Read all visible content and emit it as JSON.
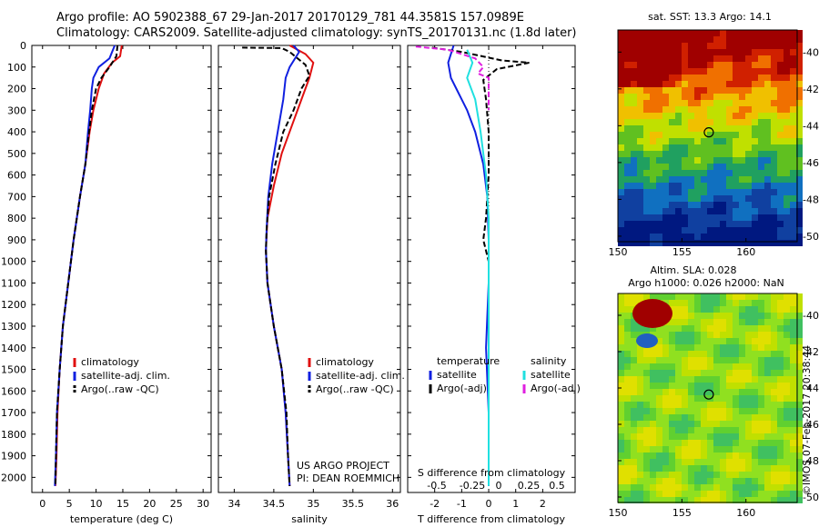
{
  "header": {
    "line1": "Argo profile: AO 5902388_67 29-Jan-2017 20170129_781 44.3581S 157.0989E",
    "line2": "Climatology: CARS2009. Satellite-adjusted climatology: synTS_20170131.nc (1.8d later)"
  },
  "colors": {
    "climatology": "#e01010",
    "satellite": "#1020e0",
    "argo": "#000000",
    "sal_satellite": "#20e0e0",
    "sal_argo": "#e020e0"
  },
  "chart_data": [
    {
      "type": "line",
      "xlabel": "temperature (deg C)",
      "xlim": [
        -2,
        31.5
      ],
      "xticks": [
        0,
        5,
        10,
        15,
        20,
        25,
        30
      ],
      "ylim": [
        0,
        2070
      ],
      "yticks": [
        0,
        100,
        200,
        300,
        400,
        500,
        600,
        700,
        800,
        900,
        1000,
        1100,
        1200,
        1300,
        1400,
        1500,
        1600,
        1700,
        1800,
        1900,
        2000
      ],
      "legend": [
        "climatology",
        "satellite-adj. clim.",
        "Argo(..raw -QC)"
      ],
      "series": [
        {
          "name": "climatology",
          "color": "#e01010",
          "points": [
            [
              14.8,
              0
            ],
            [
              14.5,
              50
            ],
            [
              13,
              80
            ],
            [
              11.5,
              130
            ],
            [
              10.5,
              200
            ],
            [
              9.5,
              300
            ],
            [
              8.8,
              400
            ],
            [
              8,
              550
            ],
            [
              7,
              700
            ],
            [
              5.8,
              900
            ],
            [
              4.8,
              1100
            ],
            [
              3.8,
              1300
            ],
            [
              3.2,
              1500
            ],
            [
              2.8,
              1700
            ],
            [
              2.6,
              1900
            ],
            [
              2.4,
              2040
            ]
          ]
        },
        {
          "name": "satellite-adj. clim.",
          "color": "#1020e0",
          "points": [
            [
              13.5,
              0
            ],
            [
              12.5,
              60
            ],
            [
              10.5,
              100
            ],
            [
              9.5,
              150
            ],
            [
              9.2,
              200
            ],
            [
              8.9,
              300
            ],
            [
              8.5,
              400
            ],
            [
              8,
              550
            ],
            [
              7,
              700
            ],
            [
              5.8,
              900
            ],
            [
              4.8,
              1100
            ],
            [
              3.8,
              1300
            ],
            [
              3.2,
              1500
            ],
            [
              2.7,
              1700
            ],
            [
              2.5,
              1900
            ],
            [
              2.3,
              2040
            ]
          ]
        },
        {
          "name": "Argo(..raw -QC)",
          "color": "#000000",
          "dash": true,
          "points": [
            [
              14,
              0
            ],
            [
              13.8,
              50
            ],
            [
              12.5,
              100
            ],
            [
              11,
              150
            ],
            [
              10,
              200
            ],
            [
              9.2,
              300
            ],
            [
              8.7,
              400
            ],
            [
              8,
              550
            ],
            [
              7,
              700
            ],
            [
              5.8,
              900
            ],
            [
              4.8,
              1100
            ],
            [
              3.8,
              1300
            ],
            [
              3.2,
              1500
            ],
            [
              2.7,
              1700
            ],
            [
              2.5,
              1900
            ],
            [
              2.4,
              2040
            ]
          ]
        }
      ]
    },
    {
      "type": "line",
      "xlabel": "salinity",
      "xlim": [
        33.8,
        36.1
      ],
      "xticks": [
        34,
        34.5,
        35,
        35.5,
        36
      ],
      "ylim": [
        0,
        2070
      ],
      "legend": [
        "climatology",
        "satellite-adj. clim.",
        "Argo(..raw -QC)"
      ],
      "annotation": [
        "US ARGO PROJECT",
        "PI: DEAN ROEMMICH"
      ],
      "series": [
        {
          "name": "climatology",
          "color": "#e01010",
          "points": [
            [
              34.7,
              0
            ],
            [
              34.9,
              40
            ],
            [
              35.0,
              80
            ],
            [
              34.95,
              150
            ],
            [
              34.85,
              250
            ],
            [
              34.75,
              350
            ],
            [
              34.6,
              500
            ],
            [
              34.5,
              650
            ],
            [
              34.42,
              800
            ],
            [
              34.4,
              950
            ],
            [
              34.42,
              1100
            ],
            [
              34.5,
              1300
            ],
            [
              34.6,
              1500
            ],
            [
              34.65,
              1700
            ],
            [
              34.68,
              1900
            ],
            [
              34.7,
              2040
            ]
          ]
        },
        {
          "name": "satellite-adj. clim.",
          "color": "#1020e0",
          "points": [
            [
              34.75,
              0
            ],
            [
              34.82,
              30
            ],
            [
              34.7,
              100
            ],
            [
              34.65,
              150
            ],
            [
              34.62,
              250
            ],
            [
              34.55,
              400
            ],
            [
              34.48,
              550
            ],
            [
              34.43,
              700
            ],
            [
              34.41,
              850
            ],
            [
              34.4,
              950
            ],
            [
              34.42,
              1100
            ],
            [
              34.5,
              1300
            ],
            [
              34.6,
              1500
            ],
            [
              34.65,
              1700
            ],
            [
              34.68,
              1900
            ],
            [
              34.7,
              2040
            ]
          ]
        },
        {
          "name": "Argo(..raw -QC)",
          "color": "#000000",
          "dash": true,
          "points": [
            [
              34.1,
              10
            ],
            [
              34.6,
              12
            ],
            [
              34.7,
              30
            ],
            [
              34.9,
              90
            ],
            [
              34.95,
              140
            ],
            [
              34.85,
              200
            ],
            [
              34.75,
              300
            ],
            [
              34.62,
              400
            ],
            [
              34.52,
              550
            ],
            [
              34.44,
              700
            ],
            [
              34.41,
              850
            ],
            [
              34.4,
              950
            ],
            [
              34.42,
              1100
            ],
            [
              34.5,
              1300
            ],
            [
              34.6,
              1500
            ],
            [
              34.66,
              1700
            ],
            [
              34.68,
              1900
            ],
            [
              34.7,
              2040
            ]
          ]
        }
      ]
    },
    {
      "type": "line",
      "xlabel": "T difference from climatology",
      "xlabel_top": "S difference from climatology",
      "xlim": [
        -3,
        3.2
      ],
      "xticks": [
        -2,
        -1,
        0,
        1,
        2
      ],
      "xticks_top": [
        "-0.5",
        "-0.25",
        "0",
        "0.25",
        "0.5"
      ],
      "ylim": [
        0,
        2070
      ],
      "legend_title_t": "temperature",
      "legend_title_s": "salinity",
      "legend_t": [
        "satellite",
        "Argo(-adj)"
      ],
      "legend_s": [
        "satellite",
        "Argo(-adj)"
      ],
      "series": [
        {
          "name": "T satellite",
          "color": "#1020e0",
          "points": [
            [
              -1.3,
              0
            ],
            [
              -1.5,
              80
            ],
            [
              -1.4,
              150
            ],
            [
              -1.2,
              200
            ],
            [
              -0.8,
              300
            ],
            [
              -0.5,
              400
            ],
            [
              -0.2,
              550
            ],
            [
              -0.05,
              700
            ],
            [
              0,
              900
            ],
            [
              0,
              1100
            ],
            [
              -0.1,
              1400
            ],
            [
              0,
              1700
            ],
            [
              0,
              2040
            ]
          ]
        },
        {
          "name": "T Argo(-adj)",
          "color": "#000000",
          "dash": true,
          "points": [
            [
              -2.1,
              10
            ],
            [
              -1.0,
              30
            ],
            [
              0.5,
              70
            ],
            [
              1.5,
              80
            ],
            [
              0.3,
              110
            ],
            [
              -0.2,
              160
            ],
            [
              -0.1,
              250
            ],
            [
              0,
              400
            ],
            [
              0,
              600
            ],
            [
              -0.1,
              800
            ],
            [
              -0.2,
              900
            ],
            [
              0,
              1000
            ],
            [
              0,
              1300
            ],
            [
              0,
              1600
            ],
            [
              0,
              2040
            ]
          ]
        },
        {
          "name": "S satellite",
          "color": "#20e0e0",
          "points": [
            [
              -0.8,
              20
            ],
            [
              -0.6,
              80
            ],
            [
              -0.8,
              150
            ],
            [
              -0.5,
              250
            ],
            [
              -0.3,
              400
            ],
            [
              -0.1,
              600
            ],
            [
              0,
              800
            ],
            [
              0,
              1000
            ],
            [
              0,
              2040
            ]
          ]
        },
        {
          "name": "S Argo(-adj)",
          "color": "#e020e0",
          "dash": true,
          "points": [
            [
              -2.7,
              5
            ],
            [
              -1.5,
              20
            ],
            [
              -0.5,
              60
            ],
            [
              -0.2,
              100
            ],
            [
              -0.4,
              130
            ],
            [
              0,
              150
            ],
            [
              0,
              300
            ]
          ]
        }
      ]
    },
    {
      "type": "heatmap",
      "title": "sat. SST: 13.3 Argo: 14.1",
      "xticks": [
        150,
        155,
        160
      ],
      "yticks": [
        -40,
        -42,
        -44,
        -46,
        -48,
        -50
      ],
      "xlim": [
        150,
        164
      ],
      "ylim": [
        -50.3,
        -38.8
      ],
      "marker": [
        157.1,
        -44.36
      ]
    },
    {
      "type": "heatmap",
      "title": "Altim. SLA: 0.028",
      "subtitle": "Argo h1000: 0.026 h2000: NaN",
      "xticks": [
        150,
        155,
        160
      ],
      "yticks": [
        -40,
        -42,
        -44,
        -46,
        -48,
        -50
      ],
      "xlim": [
        150,
        164
      ],
      "ylim": [
        -50.3,
        -38.8
      ],
      "marker": [
        157.1,
        -44.36
      ],
      "side_label": "©IMOS 07-Feb-2017 20:38:44"
    }
  ]
}
